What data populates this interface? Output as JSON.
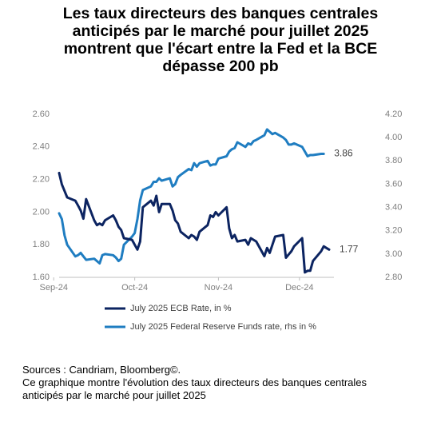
{
  "title": "Les taux directeurs des banques centrales\nanticipés par le marché pour juillet 2025\nmontrent que l'écart entre la Fed et la BCE\ndépasse 200 pb",
  "source": "Sources : Candriam, Bloomberg©.\nCe graphique montre l'évolution des taux directeurs des banques centrales anticipés par le marché pour juillet 2025",
  "chart_data": {
    "type": "line",
    "x_ticks": [
      "Sep-24",
      "Oct-24",
      "Nov-24",
      "Dec-24"
    ],
    "x_tick_dates": [
      "2024-09-01",
      "2024-10-01",
      "2024-11-01",
      "2024-12-01"
    ],
    "left_axis": {
      "ticks": [
        "2.60",
        "2.40",
        "2.20",
        "2.00",
        "1.80",
        "1.60"
      ],
      "ylim": [
        1.6,
        2.6
      ]
    },
    "right_axis": {
      "ticks": [
        "4.20",
        "4.00",
        "3.80",
        "3.60",
        "3.40",
        "3.20",
        "3.00",
        "2.80"
      ],
      "ylim": [
        2.8,
        4.2
      ]
    },
    "grid": false,
    "legend_position": "bottom",
    "colors": {
      "ecb": "#0c2461",
      "fed": "#1f7dc1"
    },
    "series": [
      {
        "name": "July 2025 ECB  Rate, in %",
        "axis": "left",
        "end_label": "1.77",
        "points": [
          [
            "2024-09-03",
            2.24
          ],
          [
            "2024-09-04",
            2.17
          ],
          [
            "2024-09-05",
            2.13
          ],
          [
            "2024-09-06",
            2.09
          ],
          [
            "2024-09-09",
            2.07
          ],
          [
            "2024-09-10",
            2.04
          ],
          [
            "2024-09-11",
            2.01
          ],
          [
            "2024-09-12",
            1.96
          ],
          [
            "2024-09-13",
            2.08
          ],
          [
            "2024-09-16",
            1.95
          ],
          [
            "2024-09-17",
            1.92
          ],
          [
            "2024-09-18",
            1.93
          ],
          [
            "2024-09-19",
            1.92
          ],
          [
            "2024-09-20",
            1.95
          ],
          [
            "2024-09-23",
            1.98
          ],
          [
            "2024-09-24",
            1.95
          ],
          [
            "2024-09-25",
            1.91
          ],
          [
            "2024-09-26",
            1.89
          ],
          [
            "2024-09-27",
            1.84
          ],
          [
            "2024-09-30",
            1.83
          ],
          [
            "2024-10-01",
            1.8
          ],
          [
            "2024-10-02",
            1.77
          ],
          [
            "2024-10-03",
            1.82
          ],
          [
            "2024-10-04",
            2.03
          ],
          [
            "2024-10-07",
            2.07
          ],
          [
            "2024-10-08",
            2.04
          ],
          [
            "2024-10-09",
            2.1
          ],
          [
            "2024-10-10",
            2.0
          ],
          [
            "2024-10-11",
            2.05
          ],
          [
            "2024-10-14",
            2.05
          ],
          [
            "2024-10-15",
            2.01
          ],
          [
            "2024-10-16",
            1.95
          ],
          [
            "2024-10-17",
            1.93
          ],
          [
            "2024-10-18",
            1.88
          ],
          [
            "2024-10-21",
            1.84
          ],
          [
            "2024-10-22",
            1.86
          ],
          [
            "2024-10-23",
            1.85
          ],
          [
            "2024-10-24",
            1.83
          ],
          [
            "2024-10-25",
            1.88
          ],
          [
            "2024-10-28",
            1.92
          ],
          [
            "2024-10-29",
            1.98
          ],
          [
            "2024-10-30",
            1.97
          ],
          [
            "2024-10-31",
            2.0
          ],
          [
            "2024-11-01",
            1.98
          ],
          [
            "2024-11-04",
            2.03
          ],
          [
            "2024-11-05",
            1.9
          ],
          [
            "2024-11-06",
            1.84
          ],
          [
            "2024-11-07",
            1.86
          ],
          [
            "2024-11-08",
            1.82
          ],
          [
            "2024-11-11",
            1.83
          ],
          [
            "2024-11-12",
            1.8
          ],
          [
            "2024-11-13",
            1.84
          ],
          [
            "2024-11-14",
            1.83
          ],
          [
            "2024-11-15",
            1.82
          ],
          [
            "2024-11-18",
            1.73
          ],
          [
            "2024-11-19",
            1.78
          ],
          [
            "2024-11-20",
            1.75
          ],
          [
            "2024-11-21",
            1.8
          ],
          [
            "2024-11-22",
            1.85
          ],
          [
            "2024-11-25",
            1.86
          ],
          [
            "2024-11-26",
            1.72
          ],
          [
            "2024-11-27",
            1.74
          ],
          [
            "2024-11-28",
            1.76
          ],
          [
            "2024-11-29",
            1.79
          ],
          [
            "2024-12-02",
            1.84
          ],
          [
            "2024-12-03",
            1.63
          ],
          [
            "2024-12-04",
            1.64
          ],
          [
            "2024-12-05",
            1.64
          ],
          [
            "2024-12-06",
            1.7
          ],
          [
            "2024-12-09",
            1.76
          ],
          [
            "2024-12-10",
            1.79
          ],
          [
            "2024-12-11",
            1.78
          ],
          [
            "2024-12-12",
            1.77
          ]
        ]
      },
      {
        "name": "July 2025 Federal Reserve Funds rate, rhs in %",
        "axis": "right",
        "end_label": "3.86",
        "points": [
          [
            "2024-09-03",
            3.35
          ],
          [
            "2024-09-04",
            3.3
          ],
          [
            "2024-09-05",
            3.16
          ],
          [
            "2024-09-06",
            3.08
          ],
          [
            "2024-09-09",
            2.98
          ],
          [
            "2024-09-10",
            2.99
          ],
          [
            "2024-09-11",
            3.01
          ],
          [
            "2024-09-12",
            2.98
          ],
          [
            "2024-09-13",
            2.95
          ],
          [
            "2024-09-16",
            2.96
          ],
          [
            "2024-09-17",
            2.94
          ],
          [
            "2024-09-18",
            2.92
          ],
          [
            "2024-09-19",
            2.99
          ],
          [
            "2024-09-20",
            3.0
          ],
          [
            "2024-09-23",
            2.99
          ],
          [
            "2024-09-24",
            2.97
          ],
          [
            "2024-09-25",
            2.94
          ],
          [
            "2024-09-26",
            2.96
          ],
          [
            "2024-09-27",
            3.08
          ],
          [
            "2024-09-30",
            3.15
          ],
          [
            "2024-10-01",
            3.18
          ],
          [
            "2024-10-02",
            3.3
          ],
          [
            "2024-10-03",
            3.46
          ],
          [
            "2024-10-04",
            3.55
          ],
          [
            "2024-10-07",
            3.58
          ],
          [
            "2024-10-08",
            3.62
          ],
          [
            "2024-10-09",
            3.62
          ],
          [
            "2024-10-10",
            3.65
          ],
          [
            "2024-10-11",
            3.63
          ],
          [
            "2024-10-14",
            3.65
          ],
          [
            "2024-10-15",
            3.58
          ],
          [
            "2024-10-16",
            3.6
          ],
          [
            "2024-10-17",
            3.66
          ],
          [
            "2024-10-18",
            3.68
          ],
          [
            "2024-10-21",
            3.73
          ],
          [
            "2024-10-22",
            3.72
          ],
          [
            "2024-10-23",
            3.78
          ],
          [
            "2024-10-24",
            3.75
          ],
          [
            "2024-10-25",
            3.78
          ],
          [
            "2024-10-28",
            3.8
          ],
          [
            "2024-10-29",
            3.76
          ],
          [
            "2024-10-30",
            3.77
          ],
          [
            "2024-10-31",
            3.77
          ],
          [
            "2024-11-01",
            3.82
          ],
          [
            "2024-11-04",
            3.84
          ],
          [
            "2024-11-05",
            3.88
          ],
          [
            "2024-11-06",
            3.9
          ],
          [
            "2024-11-07",
            3.91
          ],
          [
            "2024-11-08",
            3.96
          ],
          [
            "2024-11-11",
            3.92
          ],
          [
            "2024-11-12",
            3.95
          ],
          [
            "2024-11-13",
            3.94
          ],
          [
            "2024-11-14",
            3.97
          ],
          [
            "2024-11-15",
            3.98
          ],
          [
            "2024-11-18",
            4.02
          ],
          [
            "2024-11-19",
            4.07
          ],
          [
            "2024-11-20",
            4.05
          ],
          [
            "2024-11-21",
            4.03
          ],
          [
            "2024-11-22",
            4.04
          ],
          [
            "2024-11-25",
            4.0
          ],
          [
            "2024-11-26",
            3.98
          ],
          [
            "2024-11-27",
            3.94
          ],
          [
            "2024-11-28",
            3.94
          ],
          [
            "2024-11-29",
            3.95
          ],
          [
            "2024-12-02",
            3.92
          ],
          [
            "2024-12-03",
            3.88
          ],
          [
            "2024-12-04",
            3.84
          ],
          [
            "2024-12-05",
            3.85
          ],
          [
            "2024-12-06",
            3.85
          ],
          [
            "2024-12-09",
            3.86
          ],
          [
            "2024-12-10",
            3.86
          ]
        ]
      }
    ]
  }
}
